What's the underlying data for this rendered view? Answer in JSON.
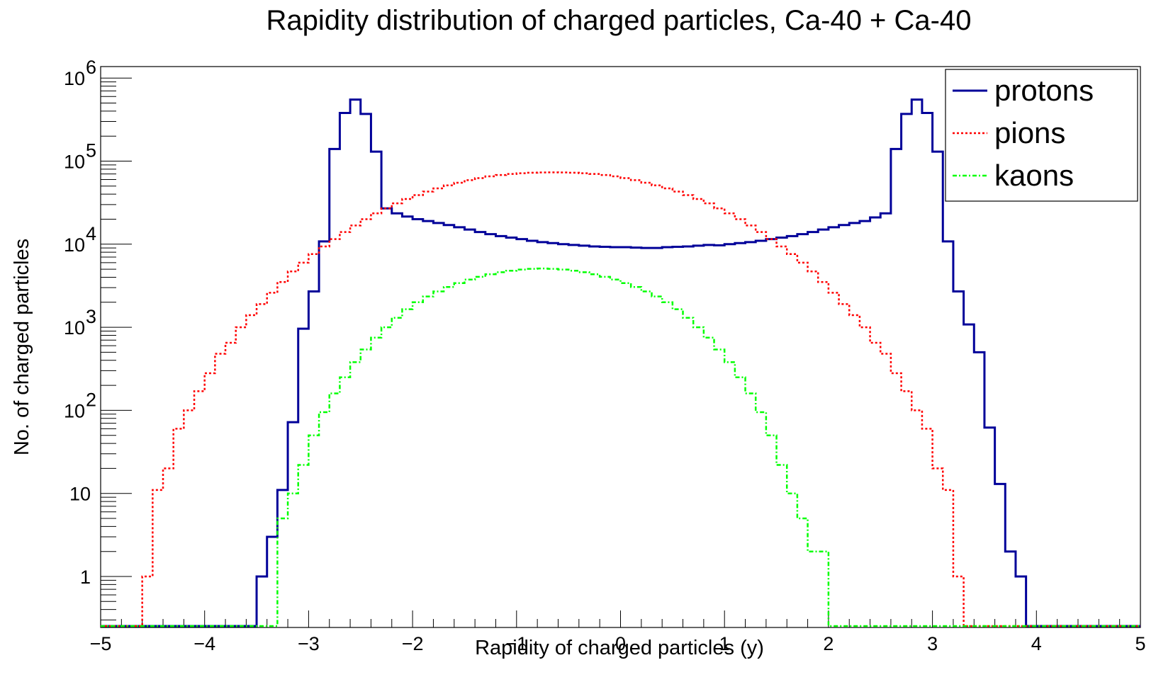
{
  "chart_data": {
    "type": "histogram",
    "title": "Rapidity distribution of charged particles, Ca-40 + Ca-40",
    "xlabel": "Rapidity of charged particles (y)",
    "ylabel": "No. of charged particles",
    "xlim": [
      -5,
      5
    ],
    "ylim": [
      0.2,
      1500000
    ],
    "yscale": "log",
    "grid": false,
    "legend_position": "top-right",
    "bin_width": 0.1,
    "x_tick_labels": [
      "−5",
      "−4",
      "−3",
      "−2",
      "−1",
      "0",
      "1",
      "2",
      "3",
      "4",
      "5"
    ],
    "x_tick_values": [
      -5,
      -4,
      -3,
      -2,
      -1,
      0,
      1,
      2,
      3,
      4,
      5
    ],
    "y_tick_labels": [
      {
        "mantissa": "1",
        "exp": ""
      },
      {
        "mantissa": "10",
        "exp": ""
      },
      {
        "mantissa": "10",
        "exp": "2"
      },
      {
        "mantissa": "10",
        "exp": "3"
      },
      {
        "mantissa": "10",
        "exp": "4"
      },
      {
        "mantissa": "10",
        "exp": "5"
      },
      {
        "mantissa": "10",
        "exp": "6"
      }
    ],
    "y_tick_values": [
      1,
      10,
      100,
      1000,
      10000,
      100000,
      1000000
    ],
    "series": [
      {
        "name": "protons",
        "color": "#000099",
        "style": "solid",
        "x_start": -3.5,
        "values": [
          1,
          3,
          11,
          72,
          960,
          2700,
          10800,
          140000,
          380000,
          550000,
          370000,
          130000,
          27000,
          23500,
          21500,
          20000,
          19000,
          18000,
          17000,
          16000,
          15000,
          14000,
          13200,
          12500,
          12000,
          11500,
          11000,
          10600,
          10300,
          10000,
          9800,
          9600,
          9400,
          9300,
          9200,
          9200,
          9100,
          9000,
          9000,
          9200,
          9300,
          9400,
          9600,
          9800,
          9700,
          10000,
          10300,
          10600,
          11000,
          11500,
          12000,
          12500,
          13200,
          14000,
          15000,
          16000,
          17000,
          18000,
          19000,
          21000,
          23500,
          140000,
          370000,
          550000,
          380000,
          130000,
          10800,
          2700,
          1080,
          500,
          62,
          13,
          2,
          1
        ]
      },
      {
        "name": "pions",
        "color": "#ff0000",
        "style": "dotted",
        "x_start": -4.6,
        "values": [
          1,
          11,
          20,
          60,
          100,
          170,
          280,
          480,
          650,
          1000,
          1400,
          1900,
          2600,
          3500,
          4700,
          6000,
          7600,
          9400,
          11500,
          14000,
          16800,
          20000,
          23500,
          27000,
          31000,
          35000,
          39000,
          43000,
          47000,
          51000,
          55000,
          59000,
          62500,
          65500,
          68000,
          70000,
          71500,
          72500,
          73000,
          73200,
          73000,
          72500,
          71500,
          70000,
          68000,
          65500,
          62500,
          59000,
          55000,
          51000,
          47000,
          43000,
          39000,
          35000,
          31000,
          27000,
          23500,
          20000,
          16800,
          14000,
          11500,
          9400,
          7600,
          6000,
          4700,
          3500,
          2600,
          1900,
          1400,
          1000,
          650,
          480,
          280,
          170,
          100,
          60,
          20,
          11,
          1
        ]
      },
      {
        "name": "kaons",
        "color": "#00ff00",
        "style": "dashdot",
        "x_start": -3.3,
        "values": [
          5,
          10,
          22,
          50,
          95,
          160,
          250,
          380,
          540,
          750,
          1000,
          1300,
          1650,
          2000,
          2350,
          2700,
          3050,
          3400,
          3750,
          4050,
          4350,
          4600,
          4800,
          4950,
          5050,
          5100,
          5050,
          4950,
          4800,
          4600,
          4350,
          4050,
          3750,
          3400,
          3050,
          2700,
          2350,
          2000,
          1650,
          1300,
          1000,
          750,
          540,
          380,
          250,
          160,
          95,
          50,
          22,
          10,
          5,
          2,
          2
        ]
      }
    ]
  }
}
